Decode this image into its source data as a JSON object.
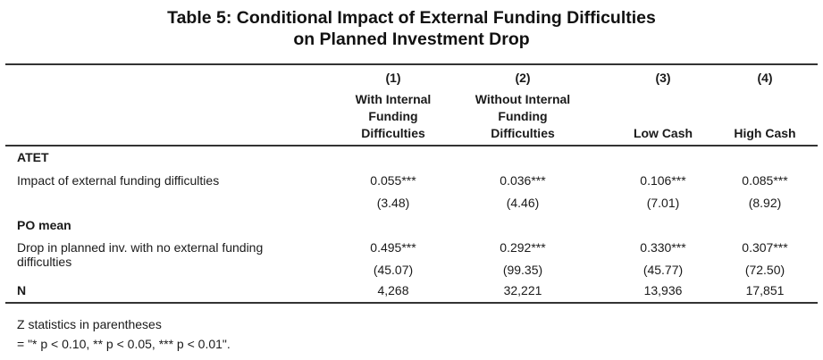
{
  "title": {
    "line1": "Table 5: Conditional Impact of External Funding Difficulties",
    "line2": "on Planned Investment Drop"
  },
  "columns": [
    {
      "num": "(1)",
      "label_lines": [
        "With Internal",
        "Funding",
        "Difficulties"
      ]
    },
    {
      "num": "(2)",
      "label_lines": [
        "Without Internal",
        "Funding",
        "Difficulties"
      ]
    },
    {
      "num": "(3)",
      "label_lines": [
        "",
        "",
        "Low Cash"
      ]
    },
    {
      "num": "(4)",
      "label_lines": [
        "",
        "",
        "High Cash"
      ]
    }
  ],
  "sections": {
    "atet": {
      "heading": "ATET",
      "row_label": "Impact of external funding difficulties",
      "coef": [
        "0.055***",
        "0.036***",
        "0.106***",
        "0.085***"
      ],
      "z": [
        "(3.48)",
        "(4.46)",
        "(7.01)",
        "(8.92)"
      ]
    },
    "po_mean": {
      "heading": "PO mean",
      "row_label_line1": "Drop in planned inv. with no external funding",
      "row_label_line2": "difficulties",
      "coef": [
        "0.495***",
        "0.292***",
        "0.330***",
        "0.307***"
      ],
      "z": [
        "(45.07)",
        "(99.35)",
        "(45.77)",
        "(72.50)"
      ]
    },
    "n": {
      "label": "N",
      "values": [
        "4,268",
        "32,221",
        "13,936",
        "17,851"
      ]
    }
  },
  "footnotes": {
    "line1": "Z statistics in parentheses",
    "line2": "= \"* p < 0.10, ** p < 0.05, *** p < 0.01\"."
  }
}
